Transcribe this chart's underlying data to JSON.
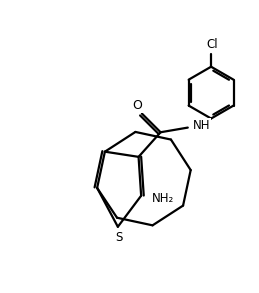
{
  "background_color": "#ffffff",
  "line_color": "#000000",
  "line_width": 1.6,
  "figsize": [
    2.59,
    2.93
  ],
  "dpi": 100,
  "xlim": [
    0,
    10
  ],
  "ylim": [
    0,
    11.3
  ],
  "S_label": "S",
  "NH2_label": "NH₂",
  "NH_label": "NH",
  "O_label": "O",
  "Cl_label": "Cl",
  "font_size": 8.5
}
